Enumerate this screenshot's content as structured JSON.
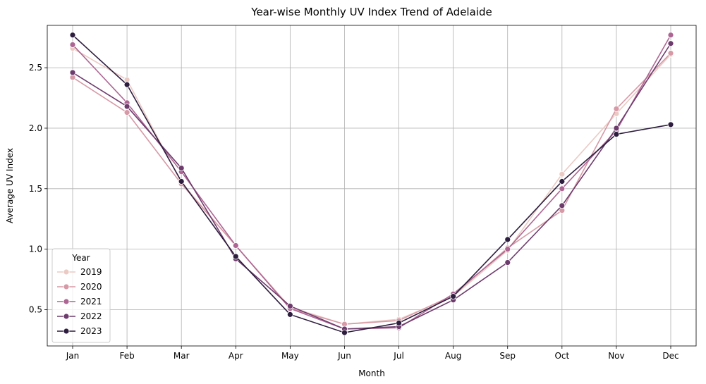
{
  "chart_data": {
    "type": "line",
    "title": "Year-wise Monthly UV Index Trend of Adelaide",
    "xlabel": "Month",
    "ylabel": "Average UV Index",
    "categories": [
      "Jan",
      "Feb",
      "Mar",
      "Apr",
      "May",
      "Jun",
      "Jul",
      "Aug",
      "Sep",
      "Oct",
      "Nov",
      "Dec"
    ],
    "ylim": [
      0.2,
      2.85
    ],
    "yticks": [
      0.5,
      1.0,
      1.5,
      2.0,
      2.5
    ],
    "ytick_labels": [
      "0.5",
      "1.0",
      "1.5",
      "2.0",
      "2.5"
    ],
    "grid": true,
    "legend": {
      "title": "Year",
      "placement": "lower-left"
    },
    "series": [
      {
        "name": "2019",
        "color": "#ebcac4",
        "values": [
          2.66,
          2.4,
          1.55,
          1.03,
          0.52,
          0.38,
          0.42,
          0.61,
          0.99,
          1.62,
          2.12,
          2.61
        ]
      },
      {
        "name": "2020",
        "color": "#d799a6",
        "values": [
          2.42,
          2.13,
          1.54,
          1.03,
          0.51,
          0.38,
          0.41,
          0.62,
          1.01,
          1.32,
          2.16,
          2.62
        ]
      },
      {
        "name": "2021",
        "color": "#ad6693",
        "values": [
          2.69,
          2.21,
          1.64,
          1.03,
          0.51,
          0.34,
          0.35,
          0.63,
          1.0,
          1.5,
          1.98,
          2.77
        ]
      },
      {
        "name": "2022",
        "color": "#6e3b6d",
        "values": [
          2.46,
          2.18,
          1.67,
          0.92,
          0.53,
          0.34,
          0.36,
          0.58,
          0.89,
          1.36,
          2.0,
          2.7
        ]
      },
      {
        "name": "2023",
        "color": "#2d1d3e",
        "values": [
          2.77,
          2.36,
          1.56,
          0.94,
          0.46,
          0.31,
          0.39,
          0.61,
          1.08,
          1.56,
          1.95,
          2.03
        ]
      }
    ]
  }
}
